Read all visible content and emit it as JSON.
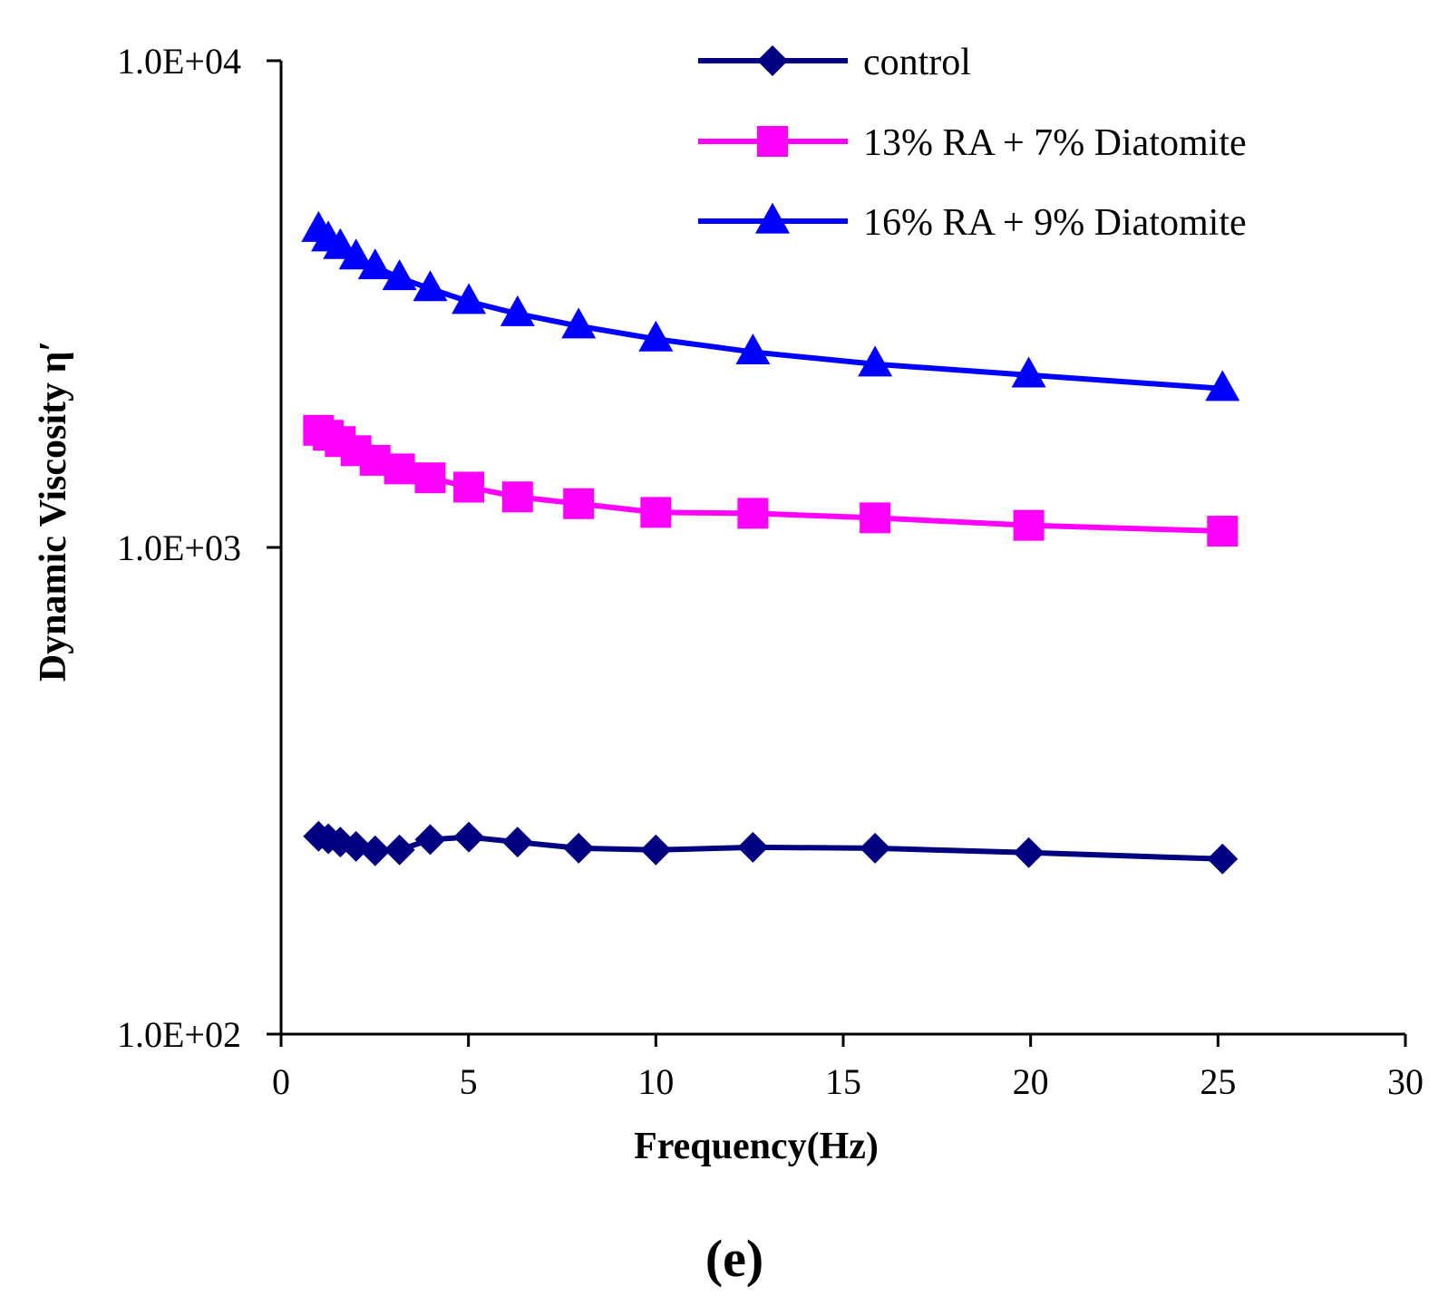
{
  "chart_data": {
    "type": "line",
    "title": "",
    "xlabel": "Frequency(Hz)",
    "ylabel": "Dynamic Viscosity η′",
    "xlim": [
      0,
      30
    ],
    "ylim": [
      100,
      10000
    ],
    "yscale": "log",
    "x_ticks": [
      0,
      5,
      10,
      15,
      20,
      25,
      30
    ],
    "x_tick_labels": [
      "0",
      "5",
      "10",
      "15",
      "20",
      "25",
      "30"
    ],
    "y_ticks": [
      100,
      1000,
      10000
    ],
    "y_tick_labels": [
      "1.0E+02",
      "1.0E+03",
      "1.0E+04"
    ],
    "grid": false,
    "legend_position": "top-right",
    "panel_label": "(e)",
    "series": [
      {
        "name": "control",
        "color": "#000080",
        "marker": "diamond",
        "x": [
          1.0,
          1.26,
          1.58,
          2.0,
          2.51,
          3.16,
          3.98,
          5.01,
          6.31,
          7.94,
          10.0,
          12.59,
          15.85,
          19.95,
          25.12
        ],
        "values": [
          255,
          252,
          248,
          243,
          238,
          239,
          251,
          254,
          248,
          241,
          239,
          242,
          241,
          236,
          229
        ]
      },
      {
        "name": "13% RA + 7% Diatomite",
        "color": "#ff00ff",
        "marker": "square",
        "x": [
          1.0,
          1.26,
          1.58,
          2.0,
          2.51,
          3.16,
          3.98,
          5.01,
          6.31,
          7.94,
          10.0,
          12.59,
          15.85,
          19.95,
          25.12
        ],
        "values": [
          1740,
          1700,
          1650,
          1580,
          1510,
          1450,
          1390,
          1330,
          1270,
          1230,
          1180,
          1175,
          1150,
          1110,
          1080
        ]
      },
      {
        "name": "16% RA + 9% Diatomite",
        "color": "#0000ff",
        "marker": "triangle",
        "x": [
          1.0,
          1.26,
          1.58,
          2.0,
          2.51,
          3.16,
          3.98,
          5.01,
          6.31,
          7.94,
          10.0,
          12.59,
          15.85,
          19.95,
          25.12
        ],
        "values": [
          4500,
          4300,
          4150,
          3950,
          3770,
          3580,
          3400,
          3200,
          3020,
          2850,
          2680,
          2520,
          2380,
          2260,
          2120
        ]
      }
    ]
  }
}
